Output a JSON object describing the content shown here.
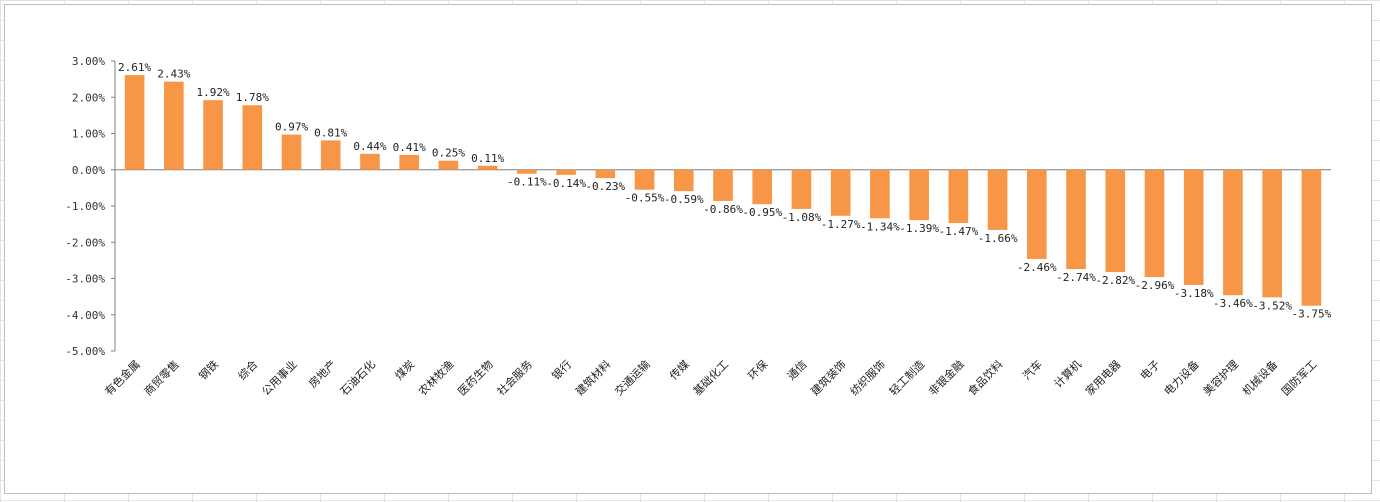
{
  "chart_data": {
    "type": "bar",
    "title": "",
    "xlabel": "",
    "ylabel": "",
    "ylim": [
      -5,
      3
    ],
    "yticks": [
      3,
      2,
      1,
      0,
      -1,
      -2,
      -3,
      -4,
      -5
    ],
    "ytick_labels": [
      "3.00%",
      "2.00%",
      "1.00%",
      "0.00%",
      "-1.00%",
      "-2.00%",
      "-3.00%",
      "-4.00%",
      "-5.00%"
    ],
    "grid": false,
    "legend": "none",
    "bar_color": "#F79646",
    "axis_color": "#7f7f7f",
    "categories": [
      "有色金属",
      "商贸零售",
      "钢铁",
      "综合",
      "公用事业",
      "房地产",
      "石油石化",
      "煤炭",
      "农林牧渔",
      "医药生物",
      "社会服务",
      "银行",
      "建筑材料",
      "交通运输",
      "传媒",
      "基础化工",
      "环保",
      "通信",
      "建筑装饰",
      "纺织服饰",
      "轻工制造",
      "非银金融",
      "食品饮料",
      "汽车",
      "计算机",
      "家用电器",
      "电子",
      "电力设备",
      "美容护理",
      "机械设备",
      "国防军工"
    ],
    "values": [
      2.61,
      2.43,
      1.92,
      1.78,
      0.97,
      0.81,
      0.44,
      0.41,
      0.25,
      0.11,
      -0.11,
      -0.14,
      -0.23,
      -0.55,
      -0.59,
      -0.86,
      -0.95,
      -1.08,
      -1.27,
      -1.34,
      -1.39,
      -1.47,
      -1.66,
      -2.46,
      -2.74,
      -2.82,
      -2.96,
      -3.18,
      -3.46,
      -3.52,
      -3.75
    ],
    "value_labels": [
      "2.61%",
      "2.43%",
      "1.92%",
      "1.78%",
      "0.97%",
      "0.81%",
      "0.44%",
      "0.41%",
      "0.25%",
      "0.11%",
      "-0.11%",
      "-0.14%",
      "-0.23%",
      "-0.55%",
      "-0.59%",
      "-0.86%",
      "-0.95%",
      "-1.08%",
      "-1.27%",
      "-1.34%",
      "-1.39%",
      "-1.47%",
      "-1.66%",
      "-2.46%",
      "-2.74%",
      "-2.82%",
      "-2.96%",
      "-3.18%",
      "-3.46%",
      "-3.52%",
      "-3.75%"
    ]
  }
}
